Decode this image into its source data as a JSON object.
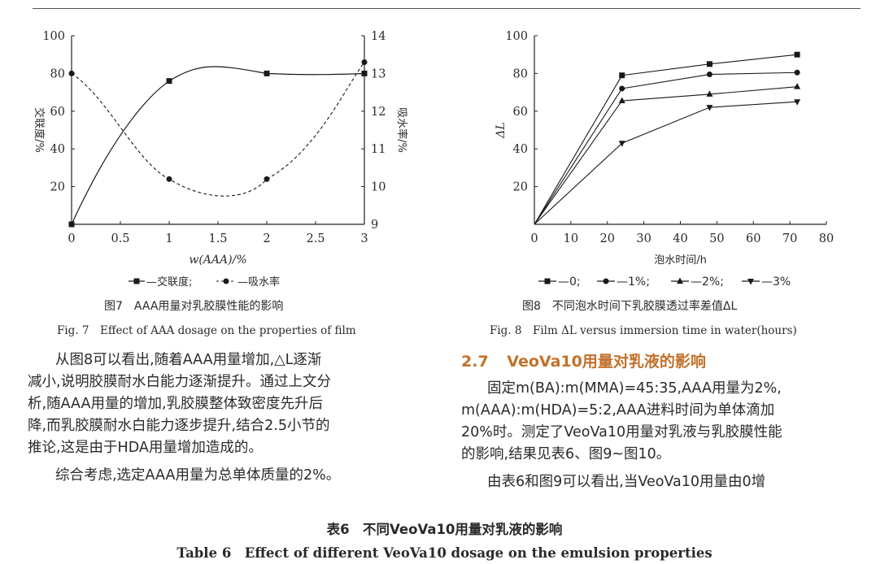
{
  "chart_data": [
    {
      "type": "line",
      "xlabel": "w(AAA)/%",
      "ylabel": "交联度/%",
      "y2label": "吸水率/%",
      "xlim": [
        0,
        3
      ],
      "ylim": [
        0,
        100
      ],
      "y2lim": [
        9,
        14
      ],
      "x_ticks": [
        "0",
        "0.5",
        "1",
        "1.5",
        "2",
        "2.5",
        "3"
      ],
      "y_ticks": [
        "20",
        "40",
        "60",
        "80",
        "100"
      ],
      "y2_ticks": [
        "9",
        "10",
        "11",
        "12",
        "13",
        "14"
      ],
      "legend": [
        "—交联度;",
        "—吸水率"
      ],
      "series": [
        {
          "name": "交联度",
          "axis": "left",
          "marker": "square",
          "style": "solid",
          "x": [
            0,
            1,
            2,
            3
          ],
          "values": [
            0,
            76,
            80,
            80
          ]
        },
        {
          "name": "吸水率",
          "axis": "right",
          "marker": "circle",
          "style": "dashed",
          "x": [
            0,
            1,
            2,
            3
          ],
          "values": [
            13.0,
            10.2,
            10.2,
            13.3
          ]
        }
      ]
    },
    {
      "type": "line",
      "xlabel": "泡水时间/h",
      "ylabel": "ΔL",
      "xlim": [
        0,
        80
      ],
      "ylim": [
        0,
        100
      ],
      "x_ticks": [
        "0",
        "10",
        "20",
        "30",
        "40",
        "50",
        "60",
        "70",
        "80"
      ],
      "y_ticks": [
        "20",
        "40",
        "60",
        "80",
        "100"
      ],
      "legend": [
        "—0;",
        "—1%;",
        "—2%;",
        "—3%"
      ],
      "series": [
        {
          "name": "0",
          "marker": "square",
          "x": [
            0,
            24,
            48,
            72
          ],
          "values": [
            0,
            79,
            85,
            90
          ]
        },
        {
          "name": "1%",
          "marker": "circle",
          "x": [
            0,
            24,
            48,
            72
          ],
          "values": [
            0,
            72,
            79.5,
            80.5
          ]
        },
        {
          "name": "2%",
          "marker": "triangle-up",
          "x": [
            0,
            24,
            48,
            72
          ],
          "values": [
            0,
            65.5,
            69,
            73
          ]
        },
        {
          "name": "3%",
          "marker": "triangle-down",
          "x": [
            0,
            24,
            48,
            72
          ],
          "values": [
            0,
            43,
            62,
            65
          ]
        }
      ]
    }
  ],
  "figures": {
    "fig7": {
      "caption_cn": "图7　AAA用量对乳胶膜性能的影响",
      "caption_en": "Fig. 7　Effect of AAA dosage on the properties of film"
    },
    "fig8": {
      "caption_cn": "图8　不同泡水时间下乳胶膜透过率差值ΔL",
      "caption_en": "Fig. 8　Film ΔL versus immersion time in water(hours)"
    }
  },
  "left_text": {
    "lines": [
      "从图8可以看出,随着AAA用量增加,△L逐渐",
      "减小,说明胶膜耐水白能力逐渐提升。通过上文分",
      "析,随AAA用量的增加,乳胶膜整体致密度先升后",
      "降,而乳胶膜耐水白能力逐步提升,结合2.5小节的",
      "推论,这是由于HDA用量增加造成的。",
      "综合考虑,选定AAA用量为总单体质量的2%。"
    ]
  },
  "section": {
    "number": "2.7",
    "title": "VeoVa10用量对乳液的影响"
  },
  "right_text": {
    "lines": [
      "固定m(BA):m(MMA)=45:35,AAA用量为2%,",
      "m(AAA):m(HDA)=5:2,AAA进料时间为单体滴加",
      "20%时。测定了VeoVa10用量对乳液与乳胶膜性能",
      "的影响,结果见表6、图9~图10。",
      "由表6和图9可以看出,当VeoVa10用量由0增"
    ]
  },
  "table_caption": {
    "cn": "表6　不同VeoVa10用量对乳液的影响",
    "en": "Table 6　Effect of different VeoVa10 dosage on the emulsion properties"
  }
}
